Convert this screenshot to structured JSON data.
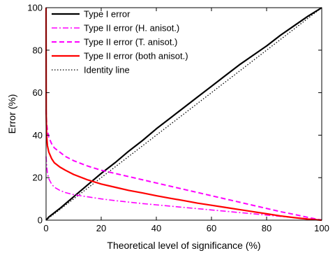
{
  "chart_data": {
    "type": "line",
    "title": "",
    "xlabel": "Theoretical level of significance (%)",
    "ylabel": "Error (%)",
    "xlim": [
      0,
      100
    ],
    "ylim": [
      0,
      100
    ],
    "xticks": [
      0,
      20,
      40,
      60,
      80,
      100
    ],
    "yticks": [
      0,
      20,
      40,
      60,
      80,
      100
    ],
    "grid": false,
    "legend_position": "top-left",
    "series": [
      {
        "name": "Type I error",
        "color": "#000000",
        "dash": "solid",
        "x": [
          0,
          1,
          3,
          5,
          8,
          10,
          15,
          20,
          25,
          30,
          35,
          40,
          45,
          50,
          55,
          60,
          65,
          70,
          75,
          80,
          85,
          90,
          95,
          100
        ],
        "y": [
          0,
          1.5,
          3.5,
          5.5,
          8.8,
          11,
          16.5,
          22,
          27,
          32.5,
          37.5,
          43,
          48,
          53,
          58,
          63,
          68,
          73,
          77.5,
          82,
          87,
          91.5,
          96,
          100
        ]
      },
      {
        "name": "Type II error (H. anisot.)",
        "color": "#ff00ff",
        "dash": "dashdot",
        "x": [
          0,
          0.2,
          0.5,
          1,
          2,
          3,
          5,
          7,
          10,
          15,
          20,
          25,
          30,
          35,
          40,
          45,
          50,
          55,
          60,
          65,
          70,
          75,
          80,
          85,
          90,
          95,
          100
        ],
        "y": [
          30,
          26,
          22,
          19.5,
          17,
          15.5,
          14,
          13,
          12,
          11,
          10,
          9.2,
          8.5,
          7.8,
          7.2,
          6.6,
          6,
          5.4,
          4.8,
          4.2,
          3.6,
          3,
          2.4,
          1.8,
          1.2,
          0.6,
          0
        ]
      },
      {
        "name": "Type II error (T. anisot.)",
        "color": "#ff00ff",
        "dash": "dashed",
        "x": [
          0,
          0.2,
          0.5,
          1,
          2,
          3,
          5,
          7,
          10,
          15,
          20,
          25,
          30,
          35,
          40,
          45,
          50,
          55,
          60,
          65,
          70,
          75,
          80,
          85,
          90,
          95,
          100
        ],
        "y": [
          52,
          46,
          42,
          39,
          36,
          34,
          32,
          30,
          28,
          25.5,
          23.5,
          22,
          20.5,
          19,
          17.5,
          16,
          14.5,
          13,
          11.5,
          10,
          8.5,
          7,
          5.5,
          4,
          2.7,
          1.3,
          0
        ]
      },
      {
        "name": "Type II error (both anisot.)",
        "color": "#ff0000",
        "dash": "solid",
        "x": [
          0,
          0.05,
          0.2,
          0.5,
          1,
          2,
          3,
          5,
          7,
          10,
          15,
          20,
          25,
          30,
          35,
          40,
          45,
          50,
          55,
          60,
          65,
          70,
          75,
          80,
          85,
          90,
          95,
          100
        ],
        "y": [
          100,
          50,
          40,
          35,
          32,
          29,
          27,
          25,
          23.5,
          21.5,
          19,
          17,
          15.5,
          14,
          12.8,
          11.5,
          10.3,
          9.2,
          8,
          7,
          6,
          5,
          4,
          3,
          2,
          1.2,
          0.5,
          0
        ]
      },
      {
        "name": "Identity line",
        "color": "#000000",
        "dash": "dotted",
        "x": [
          0,
          100
        ],
        "y": [
          0,
          100
        ]
      }
    ]
  }
}
